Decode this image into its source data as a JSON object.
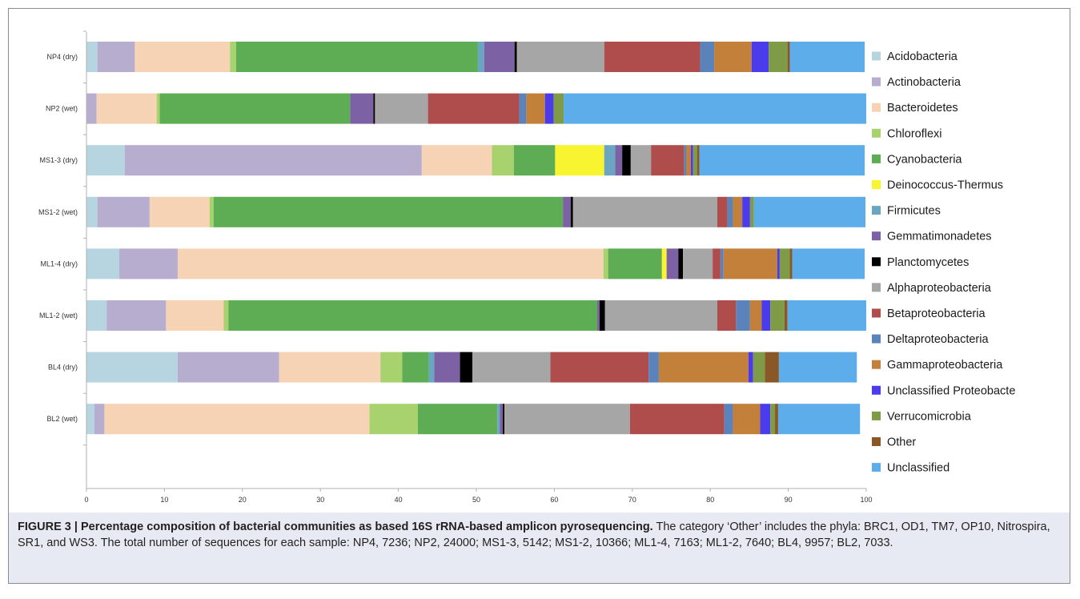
{
  "chart_data": {
    "type": "bar",
    "orientation": "horizontal",
    "stacked": true,
    "categories": [
      "NP4 (dry)",
      "NP2 (wet)",
      "MS1-3 (dry)",
      "MS1-2 (wet)",
      "ML1-4 (dry)",
      "ML1-2 (wet)",
      "BL4 (dry)",
      "BL2 (wet)"
    ],
    "xlim": [
      0,
      100
    ],
    "xticks": [
      "0",
      "10",
      "20",
      "30",
      "40",
      "50",
      "60",
      "70",
      "80",
      "90",
      "100"
    ],
    "grid": false,
    "legend_position": "right",
    "series": [
      {
        "name": "Acidobacteria",
        "color": "#b7d5e0",
        "values": [
          1.4,
          0.0,
          4.9,
          1.4,
          4.2,
          2.6,
          11.7,
          1.0
        ]
      },
      {
        "name": "Actinobacteria",
        "color": "#b6adcf",
        "values": [
          4.8,
          1.3,
          38.1,
          6.7,
          7.5,
          7.6,
          13.0,
          1.3
        ]
      },
      {
        "name": "Bacteroidetes",
        "color": "#f6d3b5",
        "values": [
          12.2,
          7.7,
          9.0,
          7.7,
          54.6,
          7.4,
          13.0,
          34.0
        ]
      },
      {
        "name": "Chloroflexi",
        "color": "#a8d26d",
        "values": [
          0.8,
          0.4,
          2.8,
          0.5,
          0.6,
          0.6,
          2.8,
          6.2
        ]
      },
      {
        "name": "Cyanobacteria",
        "color": "#5ead54",
        "values": [
          31.0,
          24.4,
          5.3,
          44.8,
          6.9,
          47.3,
          3.4,
          10.2
        ]
      },
      {
        "name": "Deinococcus-Thermus",
        "color": "#f8f430",
        "values": [
          0.0,
          0.0,
          6.3,
          0.0,
          0.6,
          0.0,
          0.0,
          0.0
        ]
      },
      {
        "name": "Firmicutes",
        "color": "#6aa6c2",
        "values": [
          0.8,
          0.0,
          1.4,
          0.0,
          0.0,
          0.0,
          0.7,
          0.3
        ]
      },
      {
        "name": "Gemmatimonadetes",
        "color": "#7c62a4",
        "values": [
          3.9,
          3.0,
          0.9,
          1.0,
          1.5,
          0.3,
          3.3,
          0.4
        ]
      },
      {
        "name": "Planctomycetes",
        "color": "#000000",
        "values": [
          0.3,
          0.2,
          1.1,
          0.3,
          0.6,
          0.7,
          1.6,
          0.2
        ]
      },
      {
        "name": "Alphaproteobacteria",
        "color": "#a6a6a6",
        "values": [
          11.2,
          6.8,
          2.6,
          18.5,
          3.8,
          14.4,
          10.0,
          16.1
        ]
      },
      {
        "name": "Betaproteobacteria",
        "color": "#ae4d4b",
        "values": [
          12.3,
          11.7,
          4.2,
          1.3,
          1.0,
          2.4,
          12.6,
          12.1
        ]
      },
      {
        "name": "Deltaproteobacteria",
        "color": "#5a83bb",
        "values": [
          1.8,
          0.9,
          0.3,
          0.7,
          0.4,
          1.8,
          1.3,
          1.1
        ]
      },
      {
        "name": "Gammaproteobacteria",
        "color": "#c3803a",
        "values": [
          4.8,
          2.4,
          0.6,
          1.2,
          6.9,
          1.5,
          11.5,
          3.5
        ]
      },
      {
        "name": "Unclassified Proteobacte",
        "color": "#4a3ced",
        "values": [
          2.2,
          1.1,
          0.3,
          1.0,
          0.3,
          1.1,
          0.6,
          1.3
        ]
      },
      {
        "name": "Verrucomicrobia",
        "color": "#7e9b48",
        "values": [
          2.4,
          1.3,
          0.5,
          0.5,
          1.3,
          1.8,
          1.5,
          0.6
        ]
      },
      {
        "name": "Other",
        "color": "#8a5726",
        "values": [
          0.3,
          0.0,
          0.3,
          0.0,
          0.3,
          0.4,
          1.8,
          0.4
        ]
      },
      {
        "name": "Unclassified",
        "color": "#5cadea",
        "values": [
          9.6,
          38.8,
          21.2,
          14.3,
          9.3,
          10.1,
          10.0,
          10.5
        ]
      }
    ]
  },
  "caption": {
    "label": "FIGURE 3 | Percentage composition of bacterial communities as based 16S rRNA-based amplicon pyrosequencing.",
    "text": " The category ‘Other’ includes the phyla: BRC1, OD1, TM7, OP10, Nitrospira, SR1, and WS3. The total number of sequences for each sample: NP4, 7236; NP2, 24000; MS1-3, 5142; MS1-2, 10366; ML1-4, 7163; ML1-2, 7640; BL4, 9957; BL2, 7033."
  }
}
